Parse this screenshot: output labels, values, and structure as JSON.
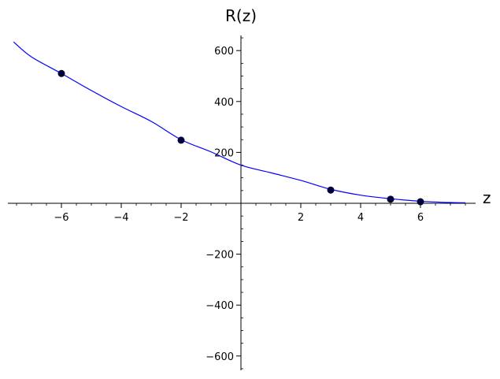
{
  "chart_data": {
    "type": "line",
    "title": "",
    "xlabel": "z",
    "ylabel": "R(z)",
    "xlim": [
      -7.6,
      7.6
    ],
    "ylim": [
      -660,
      660
    ],
    "xticks": [
      -6,
      -4,
      -2,
      2,
      4,
      6
    ],
    "yticks": [
      -600,
      -400,
      -200,
      200,
      400,
      600
    ],
    "xtick_labels": [
      "−6",
      "−4",
      "−2",
      "2",
      "4",
      "6"
    ],
    "ytick_labels": [
      "−600",
      "−400",
      "−200",
      "200",
      "400",
      "600"
    ],
    "grid": false,
    "series": [
      {
        "kind": "curve",
        "color": "#0000ff",
        "x_range": [
          -7.6,
          7.5
        ],
        "x": [
          -7.6,
          -7,
          -6,
          -5,
          -4,
          -3,
          -2,
          -1,
          0,
          1,
          2,
          3,
          4,
          5,
          6,
          7,
          7.5
        ],
        "y": [
          634,
          575,
          510,
          443,
          380,
          322,
          250,
          202,
          150,
          120,
          90,
          55,
          32,
          18,
          8,
          3,
          2
        ]
      },
      {
        "kind": "points",
        "color": "#00003a",
        "x": [
          -6,
          -2,
          3,
          5,
          6
        ],
        "y": [
          510,
          248,
          52,
          16,
          6
        ]
      }
    ]
  }
}
